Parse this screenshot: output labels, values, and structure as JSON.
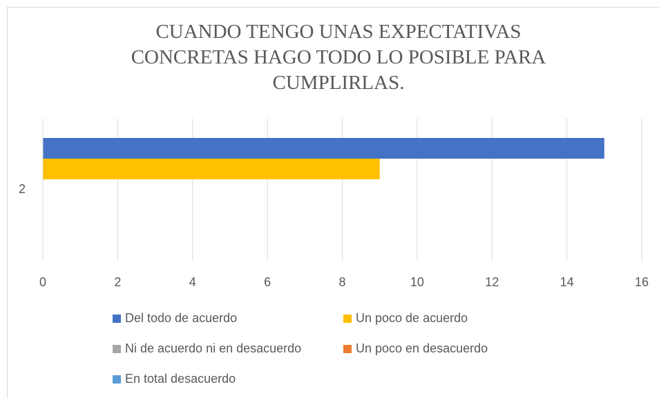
{
  "chart_data": {
    "type": "hbar",
    "title": "CUANDO TENGO UNAS EXPECTATIVAS CONCRETAS HAGO TODO LO POSIBLE PARA CUMPLIRLAS.",
    "categories": [
      "2"
    ],
    "series": [
      {
        "name": "Del todo de acuerdo",
        "color": "#4472c4",
        "values": [
          15
        ]
      },
      {
        "name": "Un poco de acuerdo",
        "color": "#ffc000",
        "values": [
          9
        ]
      },
      {
        "name": "Ni de acuerdo ni en desacuerdo",
        "color": "#a5a5a5",
        "values": [
          0
        ]
      },
      {
        "name": "Un poco en desacuerdo",
        "color": "#ed7d31",
        "values": [
          0
        ]
      },
      {
        "name": "En total desacuerdo",
        "color": "#5b9bd5",
        "values": [
          0
        ]
      }
    ],
    "xlim": [
      0,
      16
    ],
    "xticks": [
      0,
      2,
      4,
      6,
      8,
      10,
      12,
      14,
      16
    ],
    "grid": true
  }
}
